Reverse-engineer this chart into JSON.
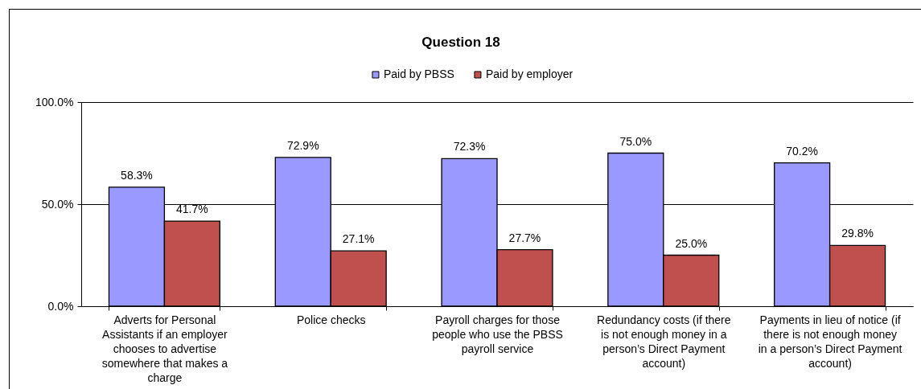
{
  "chart_data": {
    "type": "bar",
    "title": "Question 18",
    "categories": [
      "Adverts for Personal Assistants if an employer chooses to advertise somewhere that makes a charge",
      "Police checks",
      "Payroll charges for those people who use the PBSS payroll service",
      "Redundancy costs (if there is not enough money in a person’s Direct Payment account)",
      "Payments in lieu of notice (if there is not enough money in a person’s Direct Payment account)"
    ],
    "series": [
      {
        "name": "Paid by PBSS",
        "color": "#9999ff",
        "values": [
          58.3,
          72.9,
          72.3,
          75.0,
          70.2
        ],
        "value_labels": [
          "58.3%",
          "72.9%",
          "72.3%",
          "75.0%",
          "70.2%"
        ]
      },
      {
        "name": "Paid by employer",
        "color": "#c0504d",
        "values": [
          41.7,
          27.1,
          27.7,
          25.0,
          29.8
        ],
        "value_labels": [
          "41.7%",
          "27.1%",
          "27.7%",
          "25.0%",
          "29.8%"
        ]
      }
    ],
    "ylim": [
      0,
      100
    ],
    "yticks": [
      {
        "value": 0,
        "label": "0.0%"
      },
      {
        "value": 50,
        "label": "50.0%"
      },
      {
        "value": 100,
        "label": "100.0%"
      }
    ],
    "grid": "y",
    "legend": "top"
  }
}
